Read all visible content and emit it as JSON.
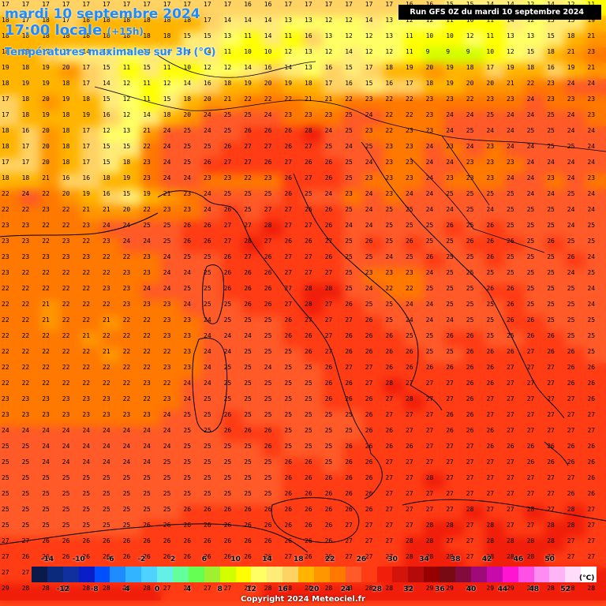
{
  "header": {
    "date_title": "mardi 10 septembre 2024",
    "time_title": "17:00 locale",
    "time_offset": "(+15h)",
    "variable_title": "Températures maximales sur 3h (°C)"
  },
  "run_badge": "Run GFS 0Z du mardi 10 septembre 2024",
  "legend": {
    "unit": "(°C)",
    "upper_ticks": [
      "-14",
      "-10",
      "-6",
      "-2",
      "2",
      "6",
      "10",
      "14",
      "18",
      "22",
      "26",
      "30",
      "34",
      "38",
      "42",
      "46",
      "50"
    ],
    "lower_ticks": [
      "-12",
      "-8",
      "-4",
      "0",
      "4",
      "8",
      "12",
      "16",
      "20",
      "24",
      "28",
      "32",
      "36",
      "40",
      "44",
      "48",
      "52"
    ],
    "colors": [
      "#0a1a4a",
      "#0b2a7a",
      "#1030a0",
      "#0a1ec8",
      "#0050ff",
      "#1e8cff",
      "#32b4ff",
      "#50d2ff",
      "#64f0e6",
      "#64ff9a",
      "#64ff50",
      "#a0f032",
      "#d2ff00",
      "#ffff00",
      "#ffff64",
      "#ffeb78",
      "#ffd264",
      "#ffb400",
      "#ff9600",
      "#ff7800",
      "#ff5a28",
      "#ff3c14",
      "#f01e0a",
      "#d2140a",
      "#b40a0a",
      "#960000",
      "#780a14",
      "#820a3c",
      "#a00a78",
      "#c80aaa",
      "#ff14d2",
      "#ff50e6",
      "#ff8cf0",
      "#ffb4f5",
      "#ffdcfa",
      "#ffffff"
    ]
  },
  "copyright": "Copyright 2024 Meteociel.fr",
  "map": {
    "grid_rows": [
      "17 17 17 17 17 17 17 17 17 17 17 17 16 16 17 17 17 17 17 17 16 16 15 15 14 14 12 14 12 11",
      "18 17 18 17 18 18 18 18 18 18 17 14 14 14 13 13 12 12 14 13 12 12 11 10 11 14 12 15 15 19",
      "18 18 18 18 18 18 18 18 18 15 15 13 11 14 11 16 13 12 12 13 11 10 10 12 11 13 13 15 18 21",
      "18 18 17 15 14 14 13 14 14 14 14 11 10 10 12 13 12 14 12 12 11 9 9 9 10 12 15 18 21 23",
      "19 18 19 20 17 15 11 15 11 10 12 12 14 16 14 13 16 15 17 18 19 20 19 18 17 19 18 16 19 21",
      "18 19 19 18 17 14 12 11 12 14 16 18 19 20 19 18 17 16 15 16 17 18 19 20 20 21 22 23 24 24",
      "17 18 20 19 18 15 12 11 15 18 20 21 22 22 22 21 21 22 23 22 22 23 23 22 23 23 24 23 23 23",
      "17 18 19 18 19 16 12 14 18 20 24 25 25 24 23 23 23 25 24 22 22 23 24 24 25 24 24 25 24 23",
      "18 16 20 18 17 12 13 21 24 25 24 25 26 26 26 28 24 25 23 22 23 23 24 25 24 24 25 25 24 24",
      "18 17 20 18 17 15 15 22 24 25 25 26 27 27 26 27 25 24 25 23 23 24 23 24 23 24 24 25 25 24",
      "17 17 20 18 17 15 18 23 24 25 26 27 27 26 27 26 26 25 24 23 23 24 24 23 23 23 24 24 24 24",
      "18 18 21 16 16 18 19 23 24 24 23 23 22 23 26 27 26 25 23 23 23 24 23 23 23 24 24 23 24 23",
      "22 24 22 20 19 16 15 19 21 23 24 25 25 25 26 25 24 23 24 23 24 24 25 25 25 25 24 24 25 24",
      "22 22 23 22 21 21 20 22 23 23 24 26 25 27 27 26 26 25 24 25 25 24 24 25 24 25 25 25 24 24",
      "23 23 22 22 23 24 24 25 25 26 26 27 27 28 27 27 26 24 24 25 25 25 26 25 26 25 25 25 24 25",
      "23 23 22 23 22 23 24 24 25 26 26 27 28 27 26 26 27 25 26 25 26 25 25 26 26 26 25 26 25 25",
      "23 23 23 23 23 22 22 23 24 25 25 26 27 26 27 27 26 25 25 24 25 26 25 25 26 25 25 25 26 24",
      "23 22 22 22 22 22 23 23 24 24 25 26 26 26 27 27 27 25 23 23 23 24 25 25 25 25 25 25 24 25",
      "22 22 22 22 22 23 23 24 24 25 25 26 26 26 27 28 28 25 24 22 22 25 25 25 26 26 25 25 25 24",
      "22 22 21 22 22 22 23 23 23 24 25 25 26 26 27 28 27 26 25 25 24 24 25 25 25 26 25 25 25 24",
      "22 22 21 22 22 21 22 22 23 23 24 25 25 25 26 27 27 27 26 25 24 24 24 25 25 26 26 25 25 25",
      "22 22 22 22 21 22 22 22 23 23 24 24 24 25 26 26 27 26 26 26 25 25 26 26 25 25 26 26 25 25",
      "22 22 22 22 22 21 22 22 22 23 24 24 25 25 25 26 27 26 26 26 26 25 25 26 26 26 27 26 26 25",
      "22 22 22 22 22 22 22 22 23 23 24 25 25 24 25 25 26 27 27 26 26 26 26 26 26 27 27 27 26 26",
      "22 22 22 22 22 22 22 23 22 24 24 25 25 25 25 25 26 26 27 28 27 27 27 26 26 27 27 27 26 26",
      "23 23 23 23 23 23 22 22 23 24 25 25 25 25 25 25 26 26 26 27 28 27 27 26 27 27 27 27 27 26",
      "23 23 23 23 23 23 23 23 24 25 25 26 25 25 25 25 25 25 26 27 27 27 26 26 27 27 27 27 27 27",
      "24 24 24 24 24 24 24 24 24 25 25 26 26 26 25 25 25 25 26 26 27 27 26 26 26 27 27 27 27 27",
      "25 25 24 24 24 24 24 24 24 25 25 25 25 26 25 25 25 26 26 26 26 27 27 27 26 26 26 26 26 26",
      "25 25 24 24 24 24 24 24 25 25 25 25 25 25 26 26 25 26 26 27 27 27 27 27 27 27 26 26 26 26",
      "25 25 25 25 25 25 25 25 25 25 25 25 25 25 26 26 26 26 26 27 27 28 27 27 27 27 27 27 27 26",
      "25 25 25 25 25 25 25 25 25 25 25 25 25 25 26 26 26 26 26 27 27 27 27 27 27 27 27 27 26 26",
      "25 25 25 25 25 25 25 25 25 26 26 26 26 26 26 26 26 26 26 27 27 27 27 28 27 27 28 27 28 27",
      "25 25 25 25 25 25 25 26 26 26 26 26 26 26 26 26 26 27 27 27 27 28 28 27 28 27 27 28 28 27",
      "27 27 26 26 26 26 26 26 26 26 26 26 26 26 26 26 26 27 27 27 28 28 27 27 28 28 28 28 27 27",
      "27 26 26 26 26 26 26 26 26 26 26 26 26 26 27 26 26 27 27 27 28 28 28 27 28 28 28 27 27 27",
      "27 27 26 26 26 26 26 26 26 26 26 26 27 27 27 27 27 27 27 28 28 28 28 28 28 28 28 28 28 28",
      "29 28 28 28 28 28 28 28 27 27 27 27 27 28 28 28 28 28 28 28 29 29 29 29 29 29 29 28 28 28"
    ]
  }
}
